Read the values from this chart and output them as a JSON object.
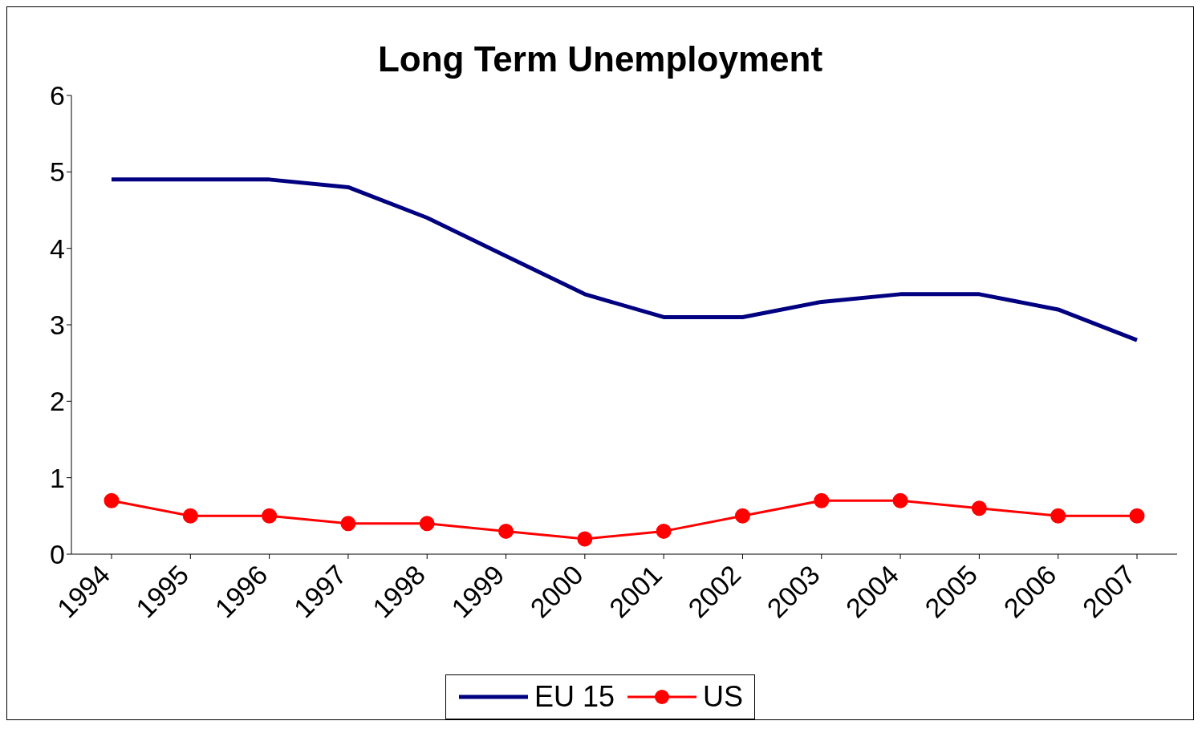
{
  "chart_data": {
    "type": "line",
    "title": "Long Term Unemployment",
    "categories": [
      "1994",
      "1995",
      "1996",
      "1997",
      "1998",
      "1999",
      "2000",
      "2001",
      "2002",
      "2003",
      "2004",
      "2005",
      "2006",
      "2007"
    ],
    "series": [
      {
        "name": "EU 15",
        "color": "#000080",
        "marker": "none",
        "values": [
          4.9,
          4.9,
          4.9,
          4.8,
          4.4,
          3.9,
          3.4,
          3.1,
          3.1,
          3.3,
          3.4,
          3.4,
          3.2,
          2.8
        ]
      },
      {
        "name": "US",
        "color": "#ff0000",
        "marker": "circle",
        "values": [
          0.7,
          0.5,
          0.5,
          0.4,
          0.4,
          0.3,
          0.2,
          0.3,
          0.5,
          0.7,
          0.7,
          0.6,
          0.5,
          0.5
        ]
      }
    ],
    "ylim": [
      0,
      6
    ],
    "yticks": [
      0,
      1,
      2,
      3,
      4,
      5,
      6
    ],
    "grid": false,
    "legend": "bottom"
  }
}
